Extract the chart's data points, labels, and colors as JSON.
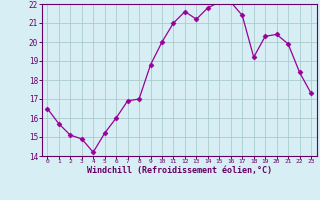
{
  "x": [
    0,
    1,
    2,
    3,
    4,
    5,
    6,
    7,
    8,
    9,
    10,
    11,
    12,
    13,
    14,
    15,
    16,
    17,
    18,
    19,
    20,
    21,
    22,
    23
  ],
  "y": [
    16.5,
    15.7,
    15.1,
    14.9,
    14.2,
    15.2,
    16.0,
    16.9,
    17.0,
    18.8,
    20.0,
    21.0,
    21.6,
    21.2,
    21.8,
    22.1,
    22.1,
    21.4,
    19.2,
    20.3,
    20.4,
    19.9,
    18.4,
    17.3
  ],
  "ylim": [
    14,
    22
  ],
  "xlim": [
    -0.5,
    23.5
  ],
  "yticks": [
    14,
    15,
    16,
    17,
    18,
    19,
    20,
    21,
    22
  ],
  "xticks": [
    0,
    1,
    2,
    3,
    4,
    5,
    6,
    7,
    8,
    9,
    10,
    11,
    12,
    13,
    14,
    15,
    16,
    17,
    18,
    19,
    20,
    21,
    22,
    23
  ],
  "xlabel": "Windchill (Refroidissement éolien,°C)",
  "line_color": "#990099",
  "marker": "D",
  "marker_size": 2.5,
  "bg_color": "#d7eef4",
  "grid_color": "#aacccc",
  "axis_color": "#660066",
  "tick_color": "#660066",
  "label_color": "#660066",
  "title": ""
}
